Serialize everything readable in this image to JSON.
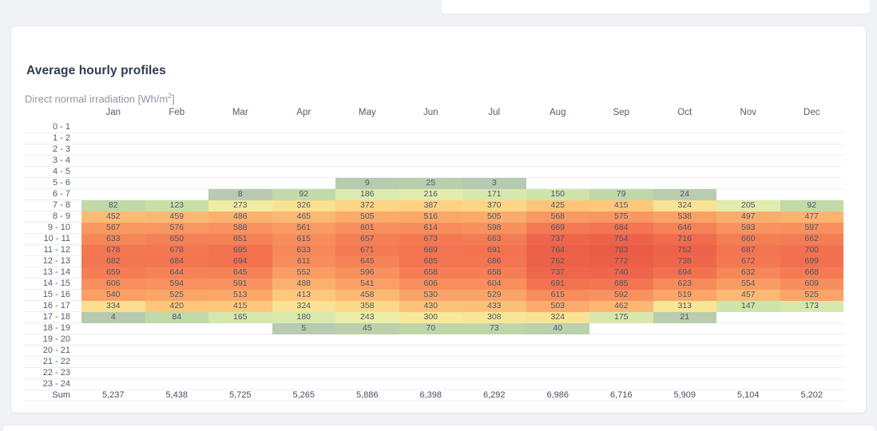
{
  "card": {
    "title": "Average hourly profiles",
    "subtitle_prefix": "Direct normal irradiation [Wh/m",
    "subtitle_sup": "2",
    "subtitle_suffix": "]"
  },
  "chart_data": {
    "type": "heatmap",
    "title": "Average hourly profiles",
    "unit_label": "Direct normal irradiation [Wh/m2]",
    "legend_position": "none",
    "grid": "horizontal-separators",
    "value_range": [
      0,
      783
    ],
    "columns": [
      "Jan",
      "Feb",
      "Mar",
      "Apr",
      "May",
      "Jun",
      "Jul",
      "Aug",
      "Sep",
      "Oct",
      "Nov",
      "Dec"
    ],
    "rows": [
      "0 - 1",
      "1 - 2",
      "2 - 3",
      "3 - 4",
      "4 - 5",
      "5 - 6",
      "6 - 7",
      "7 - 8",
      "8 - 9",
      "9 - 10",
      "10 - 11",
      "11 - 12",
      "12 - 13",
      "13 - 14",
      "14 - 15",
      "15 - 16",
      "16 - 17",
      "17 - 18",
      "18 - 19",
      "19 - 20",
      "20 - 21",
      "21 - 22",
      "22 - 23",
      "23 - 24"
    ],
    "values": [
      [
        null,
        null,
        null,
        null,
        null,
        null,
        null,
        null,
        null,
        null,
        null,
        null
      ],
      [
        null,
        null,
        null,
        null,
        null,
        null,
        null,
        null,
        null,
        null,
        null,
        null
      ],
      [
        null,
        null,
        null,
        null,
        null,
        null,
        null,
        null,
        null,
        null,
        null,
        null
      ],
      [
        null,
        null,
        null,
        null,
        null,
        null,
        null,
        null,
        null,
        null,
        null,
        null
      ],
      [
        null,
        null,
        null,
        null,
        null,
        null,
        null,
        null,
        null,
        null,
        null,
        null
      ],
      [
        null,
        null,
        null,
        null,
        9,
        25,
        3,
        null,
        null,
        null,
        null,
        null
      ],
      [
        null,
        null,
        8,
        92,
        186,
        216,
        171,
        150,
        79,
        24,
        null,
        null
      ],
      [
        82,
        123,
        273,
        326,
        372,
        387,
        370,
        425,
        415,
        324,
        205,
        92
      ],
      [
        452,
        459,
        486,
        465,
        505,
        516,
        505,
        568,
        575,
        538,
        497,
        477
      ],
      [
        567,
        576,
        588,
        561,
        601,
        614,
        598,
        669,
        684,
        646,
        593,
        597
      ],
      [
        633,
        650,
        651,
        615,
        657,
        673,
        663,
        737,
        754,
        716,
        660,
        662
      ],
      [
        678,
        678,
        695,
        633,
        671,
        689,
        691,
        764,
        783,
        752,
        687,
        700
      ],
      [
        682,
        684,
        694,
        611,
        645,
        685,
        686,
        762,
        772,
        738,
        672,
        699
      ],
      [
        659,
        644,
        645,
        552,
        596,
        658,
        658,
        737,
        740,
        694,
        632,
        668
      ],
      [
        606,
        594,
        591,
        488,
        541,
        606,
        604,
        691,
        685,
        623,
        554,
        609
      ],
      [
        540,
        525,
        513,
        413,
        458,
        530,
        529,
        615,
        592,
        519,
        457,
        525
      ],
      [
        334,
        420,
        415,
        324,
        358,
        430,
        433,
        503,
        462,
        313,
        147,
        173
      ],
      [
        4,
        84,
        165,
        180,
        243,
        300,
        308,
        324,
        175,
        21,
        null,
        null
      ],
      [
        null,
        null,
        null,
        5,
        45,
        70,
        73,
        40,
        null,
        null,
        null,
        null
      ],
      [
        null,
        null,
        null,
        null,
        null,
        null,
        null,
        null,
        null,
        null,
        null,
        null
      ],
      [
        null,
        null,
        null,
        null,
        null,
        null,
        null,
        null,
        null,
        null,
        null,
        null
      ],
      [
        null,
        null,
        null,
        null,
        null,
        null,
        null,
        null,
        null,
        null,
        null,
        null
      ],
      [
        null,
        null,
        null,
        null,
        null,
        null,
        null,
        null,
        null,
        null,
        null,
        null
      ],
      [
        null,
        null,
        null,
        null,
        null,
        null,
        null,
        null,
        null,
        null,
        null,
        null
      ]
    ],
    "sum_label": "Sum",
    "sums": [
      "5,237",
      "5,438",
      "5,725",
      "5,265",
      "5,886",
      "6,398",
      "6,292",
      "6,986",
      "6,716",
      "5,909",
      "5,104",
      "5,202"
    ],
    "colormap_stops": [
      [
        0,
        "#b7c9b1"
      ],
      [
        60,
        "#bdd4a9"
      ],
      [
        120,
        "#c7dfa6"
      ],
      [
        180,
        "#d9e9ae"
      ],
      [
        240,
        "#eceeab"
      ],
      [
        300,
        "#f7e89a"
      ],
      [
        380,
        "#fdd383"
      ],
      [
        460,
        "#fcb873"
      ],
      [
        540,
        "#faa066"
      ],
      [
        620,
        "#f78b5b"
      ],
      [
        700,
        "#f2704f"
      ],
      [
        790,
        "#ea5a46"
      ]
    ]
  }
}
